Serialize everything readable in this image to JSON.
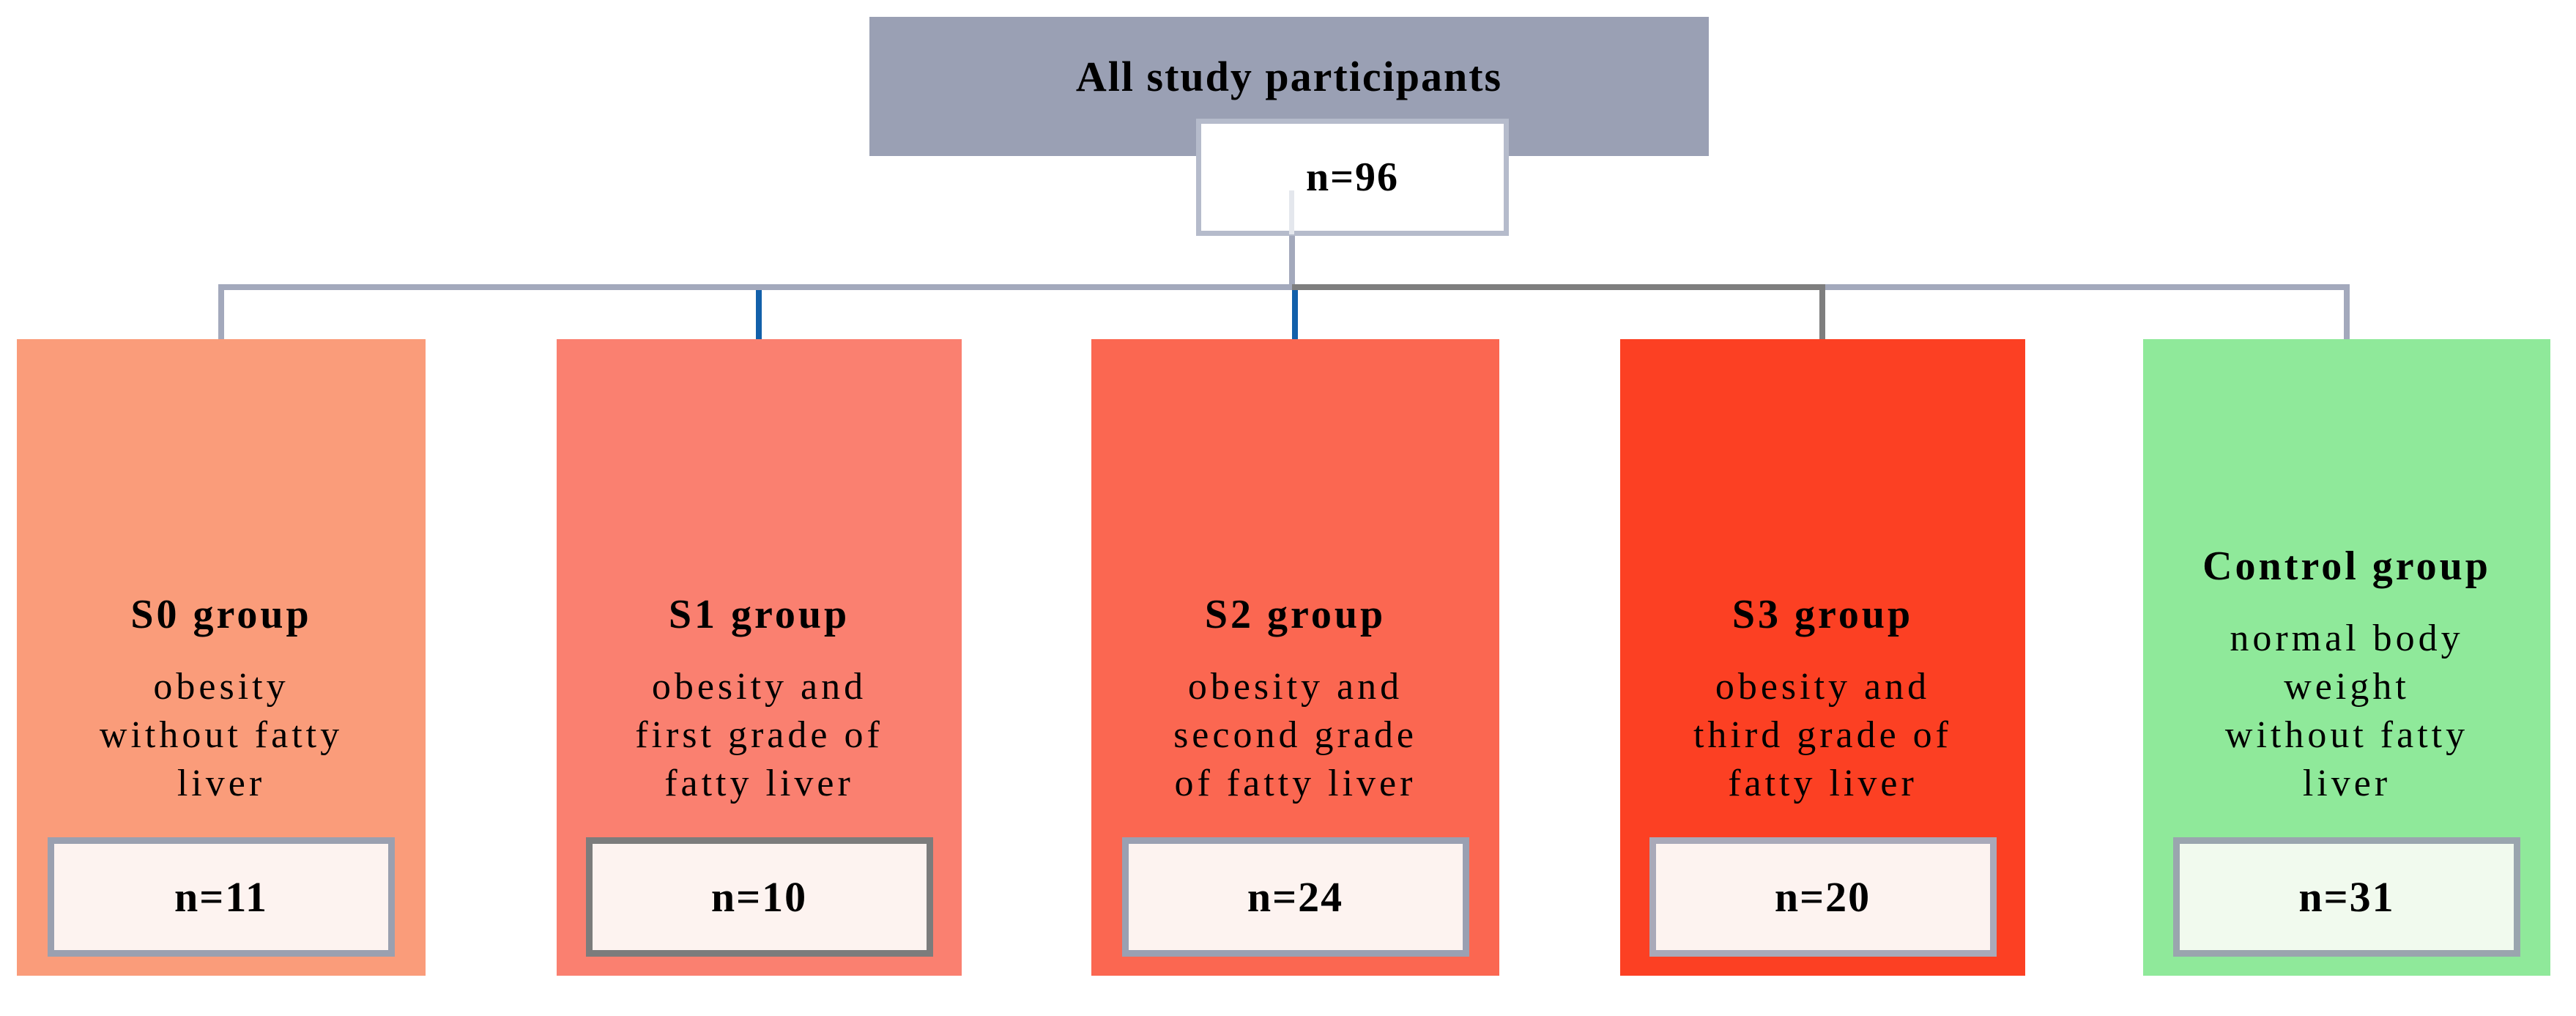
{
  "figure": {
    "root": {
      "label": "All study participants",
      "count": "n=96"
    },
    "groups": [
      {
        "name": "S0 group",
        "description": "obesity\nwithout fatty\nliver",
        "count": "n=11"
      },
      {
        "name": "S1 group",
        "description": "obesity and\nfirst grade of\nfatty liver",
        "count": "n=10"
      },
      {
        "name": "S2 group",
        "description": "obesity and\nsecond grade\nof fatty liver",
        "count": "n=24"
      },
      {
        "name": "S3 group",
        "description": "obesity and\nthird grade of\nfatty liver",
        "count": "n=20"
      },
      {
        "name": "Control group",
        "description": "normal body\nweight\nwithout fatty\nliver",
        "count": "n=31"
      }
    ],
    "colors": {
      "root_bg": "#9AA0B4",
      "root_count_bg": "#FFFFFF",
      "root_count_border": "#B5BBCB",
      "connector_light": "#A3A9BC",
      "connector_dark": "#7E7E7E",
      "connector_blue": "#1260AA",
      "group_bg": [
        "#FA9C7A",
        "#FA8070",
        "#FB6751",
        "#FC4023",
        "#8FE99A"
      ],
      "count_bg": [
        "#FDF3F0",
        "#FDF3F0",
        "#FDF3F0",
        "#FDF3F0",
        "#F1FAEE"
      ],
      "count_border": [
        "#9AA0B0",
        "#7C7C7C",
        "#9AA0B2",
        "#A9A9B9",
        "#9AA5AE"
      ]
    }
  }
}
